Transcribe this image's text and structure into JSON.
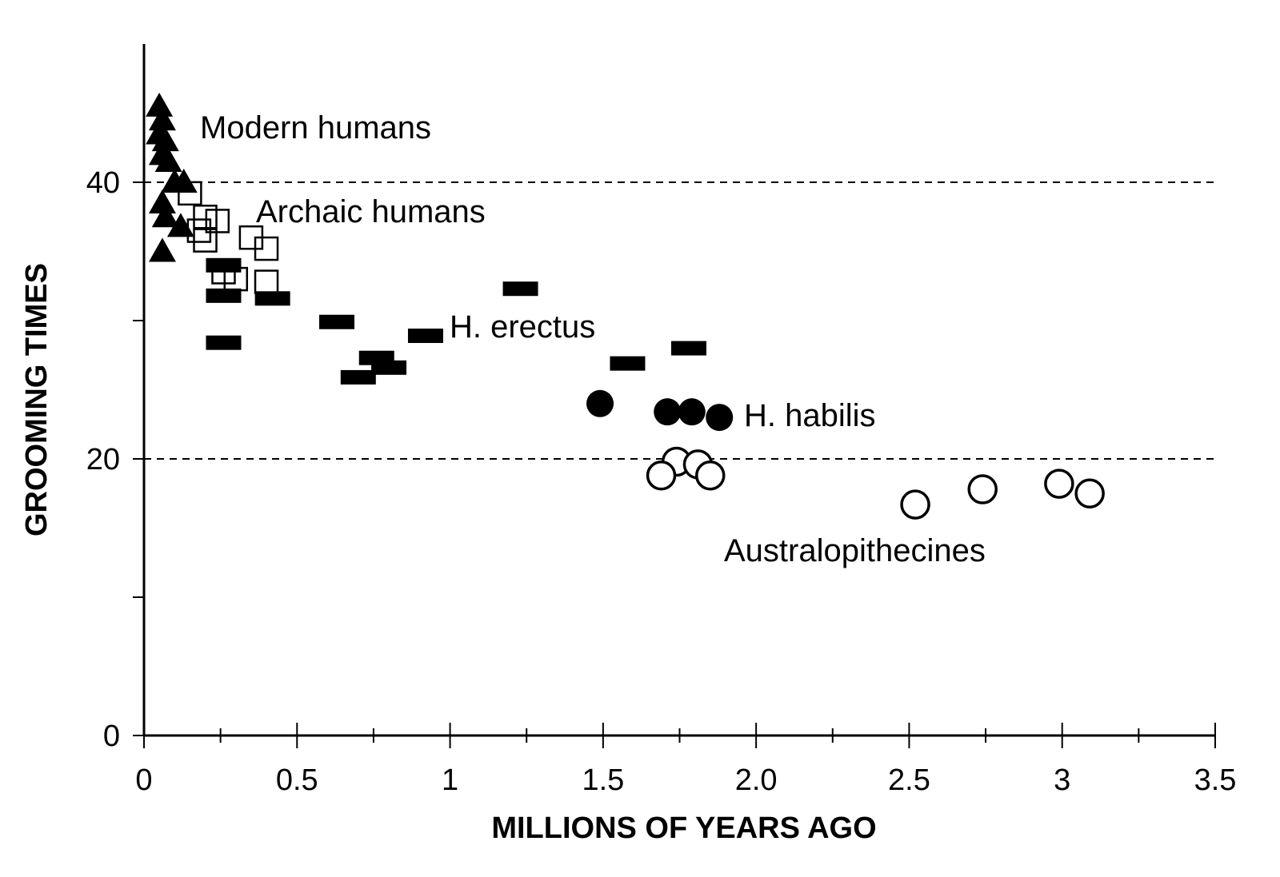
{
  "chart_data": {
    "type": "scatter",
    "title": "",
    "xlabel": "MILLIONS OF YEARS AGO",
    "ylabel": "GROOMING TIMES",
    "xlim": [
      0,
      3.5
    ],
    "ylim": [
      0,
      50
    ],
    "x_ticks": [
      "0",
      "0.5",
      "1",
      "1.5",
      "2.0",
      "2.5",
      "3",
      "3.5"
    ],
    "x_tick_values": [
      0,
      0.5,
      1,
      1.5,
      2.0,
      2.5,
      3,
      3.5
    ],
    "y_ticks": [
      "0",
      "20",
      "40"
    ],
    "y_tick_values": [
      0,
      20,
      40
    ],
    "y_minor_ticks": [
      10,
      30
    ],
    "reference_lines": [
      20,
      40
    ],
    "grid": false,
    "series": [
      {
        "name": "Modern humans",
        "marker": "filled-triangle",
        "points": [
          [
            0.05,
            45.5
          ],
          [
            0.06,
            44.5
          ],
          [
            0.05,
            43.5
          ],
          [
            0.07,
            43
          ],
          [
            0.06,
            42
          ],
          [
            0.08,
            41.5
          ],
          [
            0.1,
            40
          ],
          [
            0.13,
            40
          ],
          [
            0.06,
            38.5
          ],
          [
            0.07,
            37.5
          ],
          [
            0.12,
            36.8
          ],
          [
            0.06,
            35
          ]
        ]
      },
      {
        "name": "Archaic humans",
        "marker": "open-square",
        "points": [
          [
            0.15,
            39.2
          ],
          [
            0.2,
            37.5
          ],
          [
            0.24,
            37.2
          ],
          [
            0.18,
            36.5
          ],
          [
            0.2,
            35.8
          ],
          [
            0.35,
            36
          ],
          [
            0.4,
            35.2
          ],
          [
            0.26,
            33.5
          ],
          [
            0.3,
            33
          ],
          [
            0.4,
            32.8
          ]
        ]
      },
      {
        "name": "H. erectus",
        "marker": "filled-rectangle",
        "points": [
          [
            0.26,
            34
          ],
          [
            0.26,
            31.8
          ],
          [
            0.42,
            31.6
          ],
          [
            0.63,
            29.9
          ],
          [
            0.26,
            28.4
          ],
          [
            0.92,
            28.9
          ],
          [
            0.76,
            27.3
          ],
          [
            0.8,
            26.6
          ],
          [
            0.7,
            25.9
          ],
          [
            1.23,
            32.3
          ],
          [
            1.58,
            26.9
          ],
          [
            1.78,
            28
          ]
        ]
      },
      {
        "name": "H. habilis",
        "marker": "filled-circle",
        "points": [
          [
            1.49,
            24
          ],
          [
            1.71,
            23.4
          ],
          [
            1.79,
            23.4
          ],
          [
            1.88,
            23
          ]
        ]
      },
      {
        "name": "Australopithecines",
        "marker": "open-circle",
        "points": [
          [
            1.74,
            19.8
          ],
          [
            1.81,
            19.6
          ],
          [
            1.69,
            18.8
          ],
          [
            1.85,
            18.8
          ],
          [
            2.52,
            16.7
          ],
          [
            2.74,
            17.8
          ],
          [
            2.99,
            18.2
          ],
          [
            3.09,
            17.5
          ]
        ]
      }
    ],
    "annotations": [
      "Modern humans",
      "Archaic humans",
      "H. erectus",
      "H. habilis",
      "Australopithecines"
    ]
  }
}
